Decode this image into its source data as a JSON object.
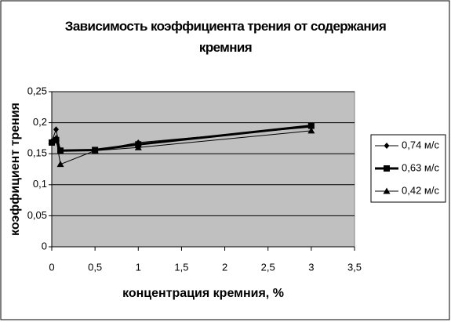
{
  "chart_data": {
    "type": "line",
    "title": "Зависимость коэффициента трения от содержания кремния",
    "x_label": "концентрация кремния, %",
    "y_label": "коэффициент трения",
    "x": [
      0,
      0.05,
      0.1,
      0.5,
      1,
      3
    ],
    "series": [
      {
        "name": "0,74 м/с",
        "color": "#000000",
        "marker": "diamond",
        "line_width": 1,
        "values": [
          0.17,
          0.189,
          0.155,
          0.155,
          0.168,
          0.193
        ]
      },
      {
        "name": "0,63 м/с",
        "color": "#000000",
        "marker": "square",
        "line_width": 3,
        "values": [
          0.168,
          0.172,
          0.155,
          0.156,
          0.165,
          0.195
        ]
      },
      {
        "name": "0,42 м/с",
        "color": "#000000",
        "marker": "triangle",
        "line_width": 1,
        "values": [
          0.17,
          0.175,
          0.133,
          0.155,
          0.16,
          0.187
        ]
      }
    ],
    "xlim": [
      0,
      3.5
    ],
    "xticks": [
      0,
      {
        "value": 0.5,
        "label": "0,5"
      },
      1,
      {
        "value": 1.5,
        "label": "1,5"
      },
      2,
      {
        "value": 2.5,
        "label": "2,5"
      },
      3,
      {
        "value": 3.5,
        "label": "3,5"
      }
    ],
    "ylim": [
      0,
      0.25
    ],
    "yticks": [
      0,
      {
        "value": 0.05,
        "label": "0,05"
      },
      {
        "value": 0.1,
        "label": "0,1"
      },
      {
        "value": 0.15,
        "label": "0,15"
      },
      {
        "value": 0.2,
        "label": "0,2"
      },
      {
        "value": 0.25,
        "label": "0,25"
      }
    ],
    "grid": true,
    "legend": "right"
  }
}
